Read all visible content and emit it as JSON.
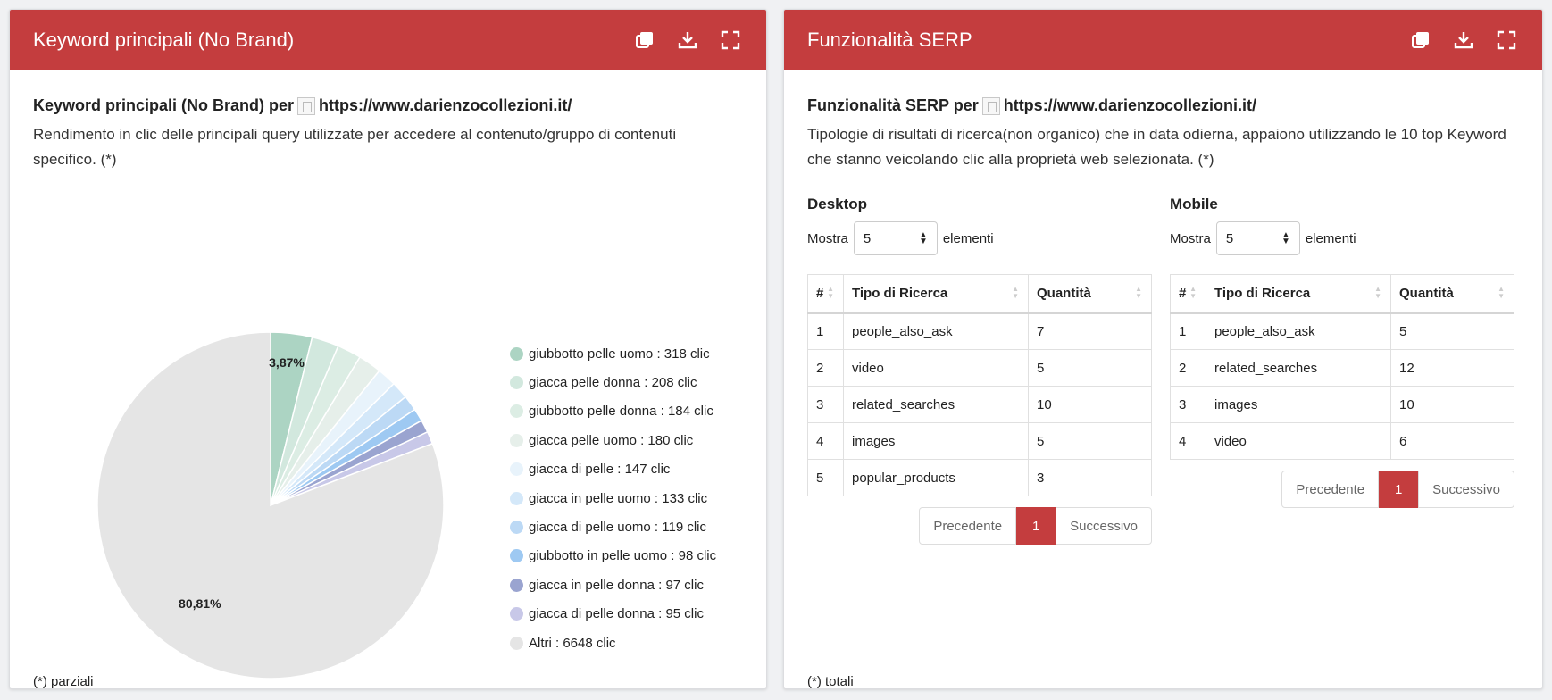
{
  "left_card": {
    "title": "Keyword principali (No Brand)",
    "subtitle_prefix": "Keyword principali (No Brand) per",
    "site_url": "https://www.darienzocollezioni.it/",
    "description": "Rendimento in clic delle principali query utilizzate per accedere al contenuto/gruppo di contenuti specifico. (*)",
    "footnote": "(*) parziali"
  },
  "right_card": {
    "title": "Funzionalità SERP",
    "subtitle_prefix": "Funzionalità SERP per",
    "site_url": "https://www.darienzocollezioni.it/",
    "description": "Tipologie di risultati di ricerca(non organico) che in data odierna, appaiono utilizzando le 10 top Keyword che stanno veicolando clic alla proprietà web selezionata. (*)",
    "footnote": "(*) totali"
  },
  "header_icons": [
    "copy-icon",
    "download-icon",
    "fullscreen-icon"
  ],
  "chart_data": {
    "type": "pie",
    "slices": [
      {
        "label": "giubbotto pelle uomo : 318 clic",
        "value": 318,
        "color": "#acd4c3"
      },
      {
        "label": "giacca pelle donna : 208 clic",
        "value": 208,
        "color": "#d2e8de"
      },
      {
        "label": "giubbotto pelle donna : 184 clic",
        "value": 184,
        "color": "#dcede4"
      },
      {
        "label": "giacca pelle uomo : 180 clic",
        "value": 180,
        "color": "#e6efea"
      },
      {
        "label": "giacca di pelle : 147 clic",
        "value": 147,
        "color": "#e8f3fb"
      },
      {
        "label": "giacca in pelle uomo : 133 clic",
        "value": 133,
        "color": "#d4e8f9"
      },
      {
        "label": "giacca di pelle uomo : 119 clic",
        "value": 119,
        "color": "#bcd9f5"
      },
      {
        "label": "giubbotto in pelle uomo : 98 clic",
        "value": 98,
        "color": "#9ec9f2"
      },
      {
        "label": "giacca in pelle donna : 97 clic",
        "value": 97,
        "color": "#9aa4d0"
      },
      {
        "label": "giacca di pelle donna : 95 clic",
        "value": 95,
        "color": "#c8c8e8"
      },
      {
        "label": "Altri : 6648 clic",
        "value": 6648,
        "color": "#e5e5e5"
      }
    ],
    "data_labels": [
      {
        "slice": 0,
        "text": "3,87%"
      },
      {
        "slice": 10,
        "text": "80,81%"
      }
    ],
    "legend_position": "right"
  },
  "serp": {
    "show_label": "Mostra",
    "elements_label": "elementi",
    "page_length": "5",
    "columns": [
      "#",
      "Tipo di Ricerca",
      "Quantità"
    ],
    "prev_label": "Precedente",
    "next_label": "Successivo",
    "current_page": "1",
    "desktop": {
      "title": "Desktop",
      "rows": [
        [
          "1",
          "people_also_ask",
          "7"
        ],
        [
          "2",
          "video",
          "5"
        ],
        [
          "3",
          "related_searches",
          "10"
        ],
        [
          "4",
          "images",
          "5"
        ],
        [
          "5",
          "popular_products",
          "3"
        ]
      ]
    },
    "mobile": {
      "title": "Mobile",
      "rows": [
        [
          "1",
          "people_also_ask",
          "5"
        ],
        [
          "2",
          "related_searches",
          "12"
        ],
        [
          "3",
          "images",
          "10"
        ],
        [
          "4",
          "video",
          "6"
        ]
      ]
    }
  }
}
